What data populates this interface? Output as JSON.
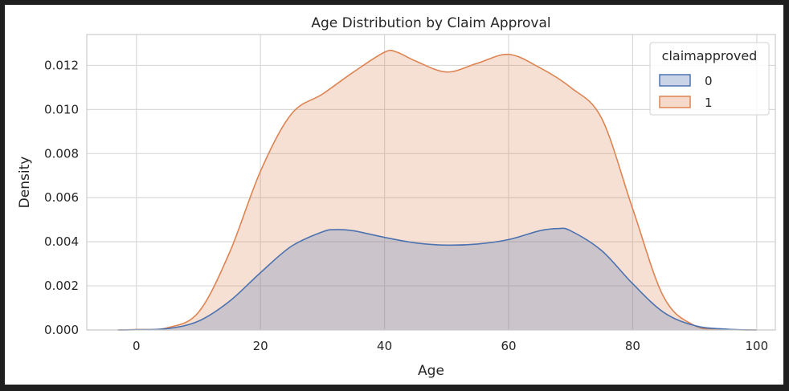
{
  "chart_data": {
    "type": "area",
    "title": "Age Distribution by Claim Approval",
    "xlabel": "Age",
    "ylabel": "Density",
    "xlim": [
      -8,
      103
    ],
    "ylim": [
      0,
      0.0134
    ],
    "x_ticks": [
      0,
      20,
      40,
      60,
      80,
      100
    ],
    "x_tick_labels": [
      "0",
      "20",
      "40",
      "60",
      "80",
      "100"
    ],
    "y_ticks": [
      0,
      0.002,
      0.004,
      0.006,
      0.008,
      0.01,
      0.012
    ],
    "y_tick_labels": [
      "0.000",
      "0.002",
      "0.004",
      "0.006",
      "0.008",
      "0.010",
      "0.012"
    ],
    "grid": true,
    "legend": {
      "title": "claimapproved",
      "placement": "top-right"
    },
    "series": [
      {
        "name": "0",
        "color": "#4c72b0",
        "points": [
          [
            -3,
            0.0
          ],
          [
            0,
            1e-05
          ],
          [
            5,
            6e-05
          ],
          [
            10,
            0.0004
          ],
          [
            15,
            0.0013
          ],
          [
            20,
            0.0026
          ],
          [
            25,
            0.0038
          ],
          [
            30,
            0.00445
          ],
          [
            32,
            0.00455
          ],
          [
            35,
            0.0045
          ],
          [
            40,
            0.0042
          ],
          [
            45,
            0.00395
          ],
          [
            50,
            0.00385
          ],
          [
            55,
            0.0039
          ],
          [
            60,
            0.0041
          ],
          [
            65,
            0.0045
          ],
          [
            68,
            0.0046
          ],
          [
            70,
            0.0045
          ],
          [
            75,
            0.0036
          ],
          [
            80,
            0.0021
          ],
          [
            85,
            0.0008
          ],
          [
            90,
            0.0002
          ],
          [
            95,
            4e-05
          ],
          [
            100,
            0.0
          ]
        ]
      },
      {
        "name": "1",
        "color": "#dd8452",
        "points": [
          [
            -3,
            0.0
          ],
          [
            0,
            2e-05
          ],
          [
            5,
            0.0001
          ],
          [
            10,
            0.0008
          ],
          [
            15,
            0.0035
          ],
          [
            20,
            0.0072
          ],
          [
            25,
            0.0098
          ],
          [
            30,
            0.0107
          ],
          [
            35,
            0.0117
          ],
          [
            40,
            0.0126
          ],
          [
            42,
            0.0126
          ],
          [
            45,
            0.0122
          ],
          [
            50,
            0.0117
          ],
          [
            55,
            0.0121
          ],
          [
            60,
            0.0125
          ],
          [
            65,
            0.0119
          ],
          [
            70,
            0.011
          ],
          [
            75,
            0.0096
          ],
          [
            80,
            0.0055
          ],
          [
            85,
            0.0015
          ],
          [
            90,
            0.0002
          ],
          [
            95,
            3e-05
          ],
          [
            100,
            0.0
          ]
        ]
      }
    ]
  }
}
